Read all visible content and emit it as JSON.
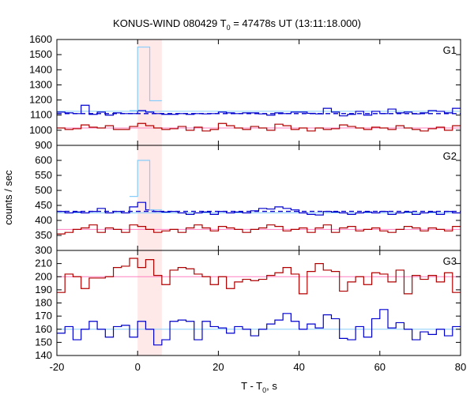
{
  "chart_data": {
    "type": "line",
    "title_main": "KONUS-WIND 080429 T",
    "title_sub": "0",
    "title_rest": " = 47478s UT (13:11:18.000)",
    "xlabel_main": "T - T",
    "xlabel_sub": "0",
    "xlabel_rest": ", s",
    "ylabel": "counts / sec",
    "xlim": [
      -20,
      80
    ],
    "xticks": [
      -20,
      0,
      20,
      40,
      60,
      80
    ],
    "highlight_region": [
      0,
      6
    ],
    "colors": {
      "accent_light": "#87cefa",
      "dark_blue": "#0000cd",
      "dark_red": "#b00000",
      "pink": "#ff80c0",
      "highlight": "#ffe8e8"
    },
    "panels": [
      {
        "label": "G1",
        "ylim": [
          900,
          1600
        ],
        "yticks": [
          900,
          1000,
          1100,
          1200,
          1300,
          1400,
          1500,
          1600
        ],
        "series": [
          {
            "color_key": "dark_blue",
            "x": [
              -20,
              -18,
              -16,
              -14,
              -12,
              -10,
              -8,
              -6,
              -4,
              -2,
              0,
              2,
              4,
              6,
              8,
              10,
              12,
              14,
              16,
              18,
              20,
              22,
              24,
              26,
              28,
              30,
              32,
              34,
              36,
              38,
              40,
              42,
              44,
              46,
              48,
              50,
              52,
              54,
              56,
              58,
              60,
              62,
              64,
              66,
              68,
              70,
              72,
              74,
              76,
              78,
              80
            ],
            "values": [
              1120,
              1115,
              1110,
              1165,
              1105,
              1120,
              1100,
              1115,
              1110,
              1110,
              1130,
              1120,
              1110,
              1105,
              1105,
              1110,
              1105,
              1110,
              1108,
              1110,
              1120,
              1115,
              1110,
              1115,
              1115,
              1108,
              1100,
              1115,
              1110,
              1120,
              1120,
              1112,
              1108,
              1145,
              1120,
              1095,
              1105,
              1125,
              1100,
              1125,
              1110,
              1140,
              1115,
              1120,
              1108,
              1115,
              1130,
              1125,
              1115,
              1145,
              1140
            ]
          },
          {
            "color_key": "accent_light",
            "x": [
              -2,
              0,
              3,
              6
            ],
            "values": [
              1130,
              1550,
              1195,
              1110
            ]
          },
          {
            "color_key": "dark_red",
            "x": [
              -20,
              -18,
              -16,
              -14,
              -12,
              -10,
              -8,
              -6,
              -4,
              -2,
              0,
              2,
              4,
              6,
              8,
              10,
              12,
              14,
              16,
              18,
              20,
              22,
              24,
              26,
              28,
              30,
              32,
              34,
              36,
              38,
              40,
              42,
              44,
              46,
              48,
              50,
              52,
              54,
              56,
              58,
              60,
              62,
              64,
              66,
              68,
              70,
              72,
              74,
              76,
              78,
              80
            ],
            "values": [
              1015,
              1005,
              1010,
              1035,
              1020,
              1015,
              1030,
              1005,
              1005,
              1025,
              1045,
              1030,
              1015,
              1005,
              1010,
              1025,
              1000,
              1020,
              995,
              1005,
              1045,
              1030,
              1015,
              1005,
              1025,
              1015,
              1000,
              1040,
              1030,
              1005,
              1015,
              995,
              1015,
              1005,
              1010,
              1035,
              1025,
              1015,
              1005,
              1020,
              1015,
              1005,
              1030,
              1015,
              1005,
              995,
              1010,
              1020,
              1000,
              1030,
              1015
            ]
          }
        ],
        "fits": [
          {
            "color_key": "dark_blue",
            "y": 1110,
            "dashed": true
          },
          {
            "color_key": "accent_light",
            "y": 1125,
            "dashed": false
          },
          {
            "color_key": "pink",
            "y": 1015,
            "dashed": false
          }
        ]
      },
      {
        "label": "G2",
        "ylim": [
          300,
          650
        ],
        "yticks": [
          300,
          350,
          400,
          450,
          500,
          550,
          600
        ],
        "series": [
          {
            "color_key": "dark_blue",
            "x": [
              -20,
              -18,
              -16,
              -14,
              -12,
              -10,
              -8,
              -6,
              -4,
              -2,
              0,
              2,
              4,
              6,
              8,
              10,
              12,
              14,
              16,
              18,
              20,
              22,
              24,
              26,
              28,
              30,
              32,
              34,
              36,
              38,
              40,
              42,
              44,
              46,
              48,
              50,
              52,
              54,
              56,
              58,
              60,
              62,
              64,
              66,
              68,
              70,
              72,
              74,
              76,
              78,
              80
            ],
            "values": [
              430,
              425,
              428,
              425,
              430,
              440,
              425,
              430,
              425,
              445,
              460,
              435,
              430,
              428,
              430,
              425,
              420,
              425,
              428,
              420,
              430,
              425,
              428,
              425,
              432,
              440,
              438,
              445,
              440,
              435,
              425,
              420,
              418,
              430,
              428,
              425,
              420,
              425,
              428,
              425,
              430,
              420,
              425,
              428,
              420,
              425,
              428,
              420,
              430,
              425,
              428
            ]
          },
          {
            "color_key": "accent_light",
            "x": [
              -2,
              0,
              3,
              6
            ],
            "values": [
              480,
              600,
              435,
              430
            ]
          },
          {
            "color_key": "dark_red",
            "x": [
              -20,
              -18,
              -16,
              -14,
              -12,
              -10,
              -8,
              -6,
              -4,
              -2,
              0,
              2,
              4,
              6,
              8,
              10,
              12,
              14,
              16,
              18,
              20,
              22,
              24,
              26,
              28,
              30,
              32,
              34,
              36,
              38,
              40,
              42,
              44,
              46,
              48,
              50,
              52,
              54,
              56,
              58,
              60,
              62,
              64,
              66,
              68,
              70,
              72,
              74,
              76,
              78,
              80
            ],
            "values": [
              355,
              360,
              370,
              375,
              385,
              360,
              375,
              370,
              360,
              385,
              380,
              370,
              360,
              365,
              370,
              360,
              375,
              385,
              375,
              365,
              380,
              375,
              370,
              360,
              370,
              375,
              385,
              380,
              365,
              370,
              375,
              360,
              375,
              385,
              360,
              375,
              380,
              365,
              370,
              375,
              365,
              360,
              370,
              380,
              375,
              365,
              375,
              370,
              365,
              380,
              350
            ]
          }
        ],
        "fits": [
          {
            "color_key": "dark_blue",
            "y": 430,
            "dashed": true
          },
          {
            "color_key": "accent_light",
            "y": 425,
            "dashed": false
          },
          {
            "color_key": "pink",
            "y": 370,
            "dashed": false
          }
        ]
      },
      {
        "label": "G3",
        "ylim": [
          140,
          220
        ],
        "yticks": [
          140,
          150,
          160,
          170,
          180,
          190,
          200,
          210
        ],
        "series": [
          {
            "color_key": "dark_red",
            "x": [
              -20,
              -18,
              -16,
              -14,
              -12,
              -10,
              -8,
              -6,
              -4,
              -2,
              0,
              2,
              4,
              6,
              8,
              10,
              12,
              14,
              16,
              18,
              20,
              22,
              24,
              26,
              28,
              30,
              32,
              34,
              36,
              38,
              40,
              42,
              44,
              46,
              48,
              50,
              52,
              54,
              56,
              58,
              60,
              62,
              64,
              66,
              68,
              70,
              72,
              74,
              76,
              78,
              80
            ],
            "values": [
              188,
              202,
              200,
              191,
              199,
              199,
              200,
              207,
              208,
              214,
              207,
              213,
              201,
              194,
              205,
              207,
              206,
              202,
              200,
              194,
              200,
              191,
              196,
              198,
              197,
              198,
              201,
              203,
              207,
              202,
              187,
              204,
              210,
              205,
              204,
              189,
              196,
              200,
              194,
              203,
              202,
              196,
              205,
              187,
              201,
              198,
              201,
              196,
              203,
              188,
              200
            ]
          },
          {
            "color_key": "dark_blue",
            "x": [
              -20,
              -18,
              -16,
              -14,
              -12,
              -10,
              -8,
              -6,
              -4,
              -2,
              0,
              2,
              4,
              6,
              8,
              10,
              12,
              14,
              16,
              18,
              20,
              22,
              24,
              26,
              28,
              30,
              32,
              34,
              36,
              38,
              40,
              42,
              44,
              46,
              48,
              50,
              52,
              54,
              56,
              58,
              60,
              62,
              64,
              66,
              68,
              70,
              72,
              74,
              76,
              78,
              80
            ],
            "values": [
              157,
              162,
              152,
              160,
              166,
              160,
              154,
              162,
              163,
              154,
              166,
              160,
              148,
              152,
              166,
              167,
              166,
              152,
              166,
              162,
              161,
              157,
              162,
              160,
              155,
              160,
              164,
              167,
              172,
              166,
              160,
              164,
              161,
              171,
              168,
              153,
              152,
              162,
              154,
              168,
              175,
              161,
              165,
              160,
              152,
              158,
              156,
              160,
              155,
              162,
              162
            ]
          }
        ],
        "fits": [
          {
            "color_key": "pink",
            "y": 200,
            "dashed": false
          },
          {
            "color_key": "accent_light",
            "y": 160,
            "dashed": false
          }
        ]
      }
    ]
  }
}
